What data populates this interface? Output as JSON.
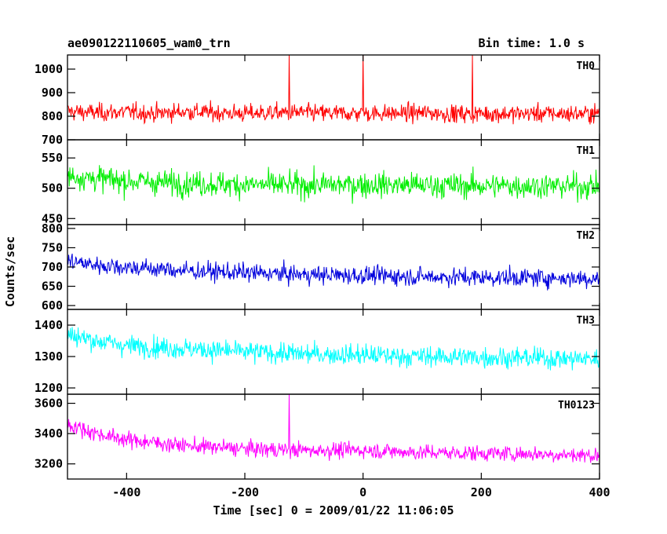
{
  "header": {
    "title": "ae090122110605_wam0_trn",
    "bin_time": "Bin time: 1.0 s"
  },
  "xlabel": "Time [sec] 0 = 2009/01/22 11:06:05",
  "ylabel": "Counts/sec",
  "chart_data": {
    "type": "line",
    "x_range": [
      -500,
      400
    ],
    "x_ticks": [
      -400,
      -200,
      0,
      200,
      400
    ],
    "xlabel": "Time [sec] 0 = 2009/01/22 11:06:05",
    "ylabel": "Counts/sec",
    "title": "ae090122110605_wam0_trn",
    "bin_time_s": 1.0,
    "panels": [
      {
        "name": "TH0",
        "color": "#ff0000",
        "ylim": [
          700,
          1060
        ],
        "y_ticks": [
          700,
          800,
          900,
          1000
        ],
        "x": [
          -500,
          -450,
          -400,
          -350,
          -300,
          -250,
          -200,
          -150,
          -125,
          -100,
          -50,
          0,
          50,
          100,
          150,
          185,
          200,
          250,
          300,
          350,
          400
        ],
        "y": [
          820,
          815,
          818,
          812,
          820,
          815,
          812,
          815,
          1060,
          815,
          812,
          1060,
          812,
          815,
          810,
          1060,
          812,
          810,
          812,
          810,
          812
        ],
        "noise": 40
      },
      {
        "name": "TH1",
        "color": "#00ee00",
        "ylim": [
          440,
          580
        ],
        "y_ticks": [
          450,
          500,
          550
        ],
        "x": [
          -500,
          -400,
          -300,
          -200,
          -100,
          0,
          100,
          200,
          300,
          400
        ],
        "y": [
          520,
          512,
          508,
          506,
          505,
          506,
          505,
          504,
          504,
          503
        ],
        "noise": 22
      },
      {
        "name": "TH2",
        "color": "#0000dd",
        "ylim": [
          590,
          810
        ],
        "y_ticks": [
          600,
          650,
          700,
          750,
          800
        ],
        "x": [
          -500,
          -450,
          -400,
          -300,
          -200,
          -100,
          0,
          100,
          200,
          300,
          400
        ],
        "y": [
          715,
          705,
          700,
          690,
          685,
          680,
          678,
          675,
          673,
          672,
          670
        ],
        "noise": 25
      },
      {
        "name": "TH3",
        "color": "#00ffff",
        "ylim": [
          1180,
          1450
        ],
        "y_ticks": [
          1200,
          1300,
          1400
        ],
        "x": [
          -500,
          -450,
          -400,
          -300,
          -200,
          -100,
          0,
          100,
          200,
          300,
          400
        ],
        "y": [
          1370,
          1350,
          1335,
          1325,
          1315,
          1308,
          1305,
          1300,
          1298,
          1295,
          1292
        ],
        "noise": 35
      },
      {
        "name": "TH0123",
        "color": "#ff00ff",
        "ylim": [
          3100,
          3660
        ],
        "y_ticks": [
          3200,
          3400,
          3600
        ],
        "x": [
          -500,
          -450,
          -400,
          -300,
          -200,
          -125,
          -100,
          0,
          100,
          200,
          300,
          400
        ],
        "y": [
          3460,
          3400,
          3360,
          3320,
          3300,
          3660,
          3290,
          3290,
          3275,
          3270,
          3265,
          3255
        ],
        "noise": 55
      }
    ]
  }
}
